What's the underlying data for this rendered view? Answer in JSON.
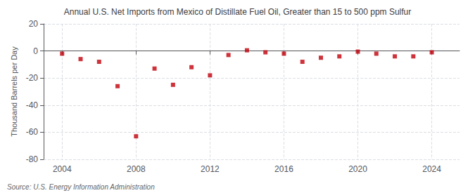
{
  "chart_data": {
    "type": "scatter",
    "title": "Annual U.S. Net Imports from Mexico of Distillate Fuel Oil, Greater than 15 to 500 ppm Sulfur",
    "ylabel": "Thousand Barrels per Day",
    "annotations": [
      "Source: U.S. Energy Information Administration"
    ],
    "x": [
      2004,
      2005,
      2006,
      2007,
      2008,
      2009,
      2010,
      2011,
      2012,
      2013,
      2014,
      2015,
      2016,
      2017,
      2018,
      2019,
      2020,
      2021,
      2022,
      2023,
      2024
    ],
    "values": [
      -2.0,
      -6.0,
      -8.0,
      -26.0,
      -63.0,
      -13.0,
      -25.0,
      -12.0,
      -18.0,
      -3.0,
      0.5,
      -1.0,
      -2.0,
      -8.0,
      -5.0,
      -4.0,
      -0.5,
      -2.0,
      -4.0,
      -4.0,
      -1.0
    ],
    "color": "#c0000a",
    "marker": "square",
    "xlim": [
      2003.0,
      2025.5
    ],
    "xticks": [
      2004,
      2008,
      2012,
      2016,
      2020,
      2024
    ],
    "ylim": [
      -80,
      20
    ],
    "yticks": [
      -80,
      -60,
      -40,
      -20,
      0,
      20
    ],
    "grid": true
  }
}
